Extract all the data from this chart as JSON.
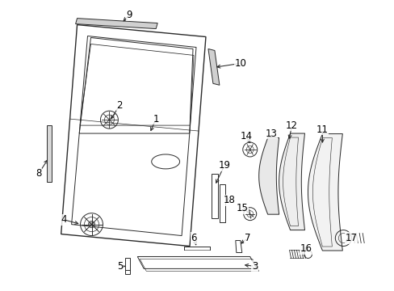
{
  "background_color": "#ffffff",
  "figure_width": 4.89,
  "figure_height": 3.6,
  "dpi": 100,
  "line_color": "#2a2a2a",
  "text_color": "#000000",
  "label_fontsize": 8.5
}
